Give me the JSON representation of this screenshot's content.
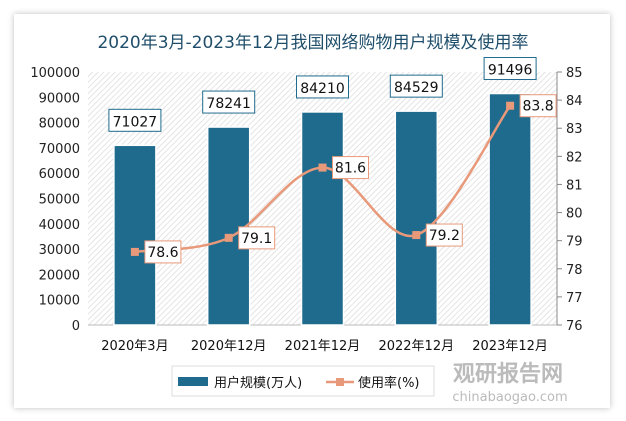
{
  "chart_data": {
    "type": "bar+line",
    "title": "2020年3月-2023年12月我国网络购物用户规模及使用率",
    "categories": [
      "2020年3月",
      "2020年12月",
      "2021年12月",
      "2022年12月",
      "2023年12月"
    ],
    "series": [
      {
        "name": "用户规模(万人)",
        "type": "bar",
        "axis": "left",
        "values": [
          71027,
          78241,
          84210,
          84529,
          91496
        ],
        "color": "#1f6b8e"
      },
      {
        "name": "使用率(%)",
        "type": "line",
        "axis": "right",
        "values": [
          78.6,
          79.1,
          81.6,
          79.2,
          83.8
        ],
        "color": "#e8997a"
      }
    ],
    "y_left": {
      "range": [
        0,
        100000
      ],
      "ticks": [
        0,
        10000,
        20000,
        30000,
        40000,
        50000,
        60000,
        70000,
        80000,
        90000,
        100000
      ]
    },
    "y_right": {
      "range": [
        76,
        85
      ],
      "ticks": [
        76,
        77,
        78,
        79,
        80,
        81,
        82,
        83,
        84,
        85
      ]
    },
    "legend": "bottom",
    "title_color": "#1f4e6b"
  },
  "watermark": {
    "name": "观研报告网",
    "url": "chinabaogao.com"
  }
}
